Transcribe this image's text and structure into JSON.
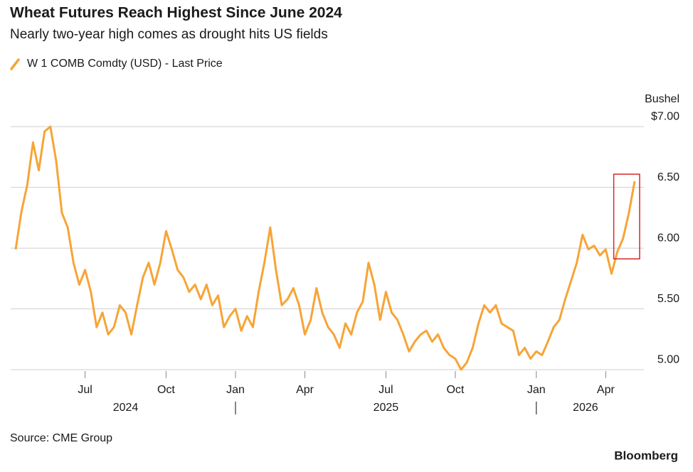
{
  "chart_data": {
    "type": "line",
    "title": "Wheat Futures Reach Highest Since June 2024",
    "subtitle": "Nearly two-year high comes as drought hits US fields",
    "y_label": "Bushel",
    "source": "Source: CME Group",
    "brand": "Bloomberg",
    "categories": [
      null,
      null,
      null,
      null,
      null,
      null,
      null,
      null,
      null,
      null,
      null,
      null,
      "Jul",
      null,
      null,
      null,
      null,
      null,
      null,
      null,
      null,
      null,
      null,
      null,
      null,
      null,
      "Oct",
      null,
      null,
      null,
      null,
      null,
      null,
      null,
      null,
      null,
      null,
      null,
      "Jan",
      null,
      null,
      null,
      null,
      null,
      null,
      null,
      null,
      null,
      null,
      null,
      "Apr",
      null,
      null,
      null,
      null,
      null,
      null,
      null,
      null,
      null,
      null,
      null,
      null,
      null,
      "Jul",
      null,
      null,
      null,
      null,
      null,
      null,
      null,
      null,
      null,
      null,
      null,
      "Oct",
      null,
      null,
      null,
      null,
      null,
      null,
      null,
      null,
      null,
      null,
      null,
      null,
      null,
      "Jan",
      null,
      null,
      null,
      null,
      null,
      null,
      null,
      null,
      null,
      null,
      null,
      "Apr",
      null,
      null,
      null,
      null,
      null
    ],
    "years": [
      "2024",
      "2025",
      "2026"
    ],
    "series": [
      {
        "name": "W 1 COMB Comdty (USD) - Last Price",
        "color": "#f7a436",
        "values": [
          5.99,
          6.3,
          6.52,
          6.87,
          6.64,
          6.96,
          7.0,
          6.72,
          6.29,
          6.17,
          5.88,
          5.7,
          5.82,
          5.64,
          5.35,
          5.47,
          5.29,
          5.35,
          5.53,
          5.47,
          5.29,
          5.53,
          5.76,
          5.88,
          5.7,
          5.88,
          6.14,
          5.99,
          5.82,
          5.76,
          5.64,
          5.7,
          5.58,
          5.7,
          5.53,
          5.61,
          5.35,
          5.44,
          5.5,
          5.32,
          5.44,
          5.35,
          5.64,
          5.88,
          6.17,
          5.82,
          5.53,
          5.58,
          5.67,
          5.53,
          5.29,
          5.41,
          5.67,
          5.47,
          5.35,
          5.29,
          5.18,
          5.38,
          5.29,
          5.47,
          5.56,
          5.88,
          5.7,
          5.41,
          5.64,
          5.47,
          5.41,
          5.29,
          5.15,
          5.23,
          5.29,
          5.32,
          5.23,
          5.29,
          5.18,
          5.12,
          5.09,
          5.0,
          5.06,
          5.18,
          5.38,
          5.53,
          5.47,
          5.53,
          5.38,
          5.35,
          5.32,
          5.12,
          5.18,
          5.09,
          5.15,
          5.12,
          5.23,
          5.35,
          5.41,
          5.58,
          5.73,
          5.88,
          6.11,
          5.99,
          6.02,
          5.94,
          5.99,
          5.79,
          5.97,
          6.08,
          6.29,
          6.55
        ]
      }
    ],
    "ylim": [
      4.93,
      7.1
    ],
    "yticks": [
      {
        "value": 5,
        "label": "5.00"
      },
      {
        "value": 5.5,
        "label": "5.50"
      },
      {
        "value": 6,
        "label": "6.00"
      },
      {
        "value": 6.5,
        "label": "6.50"
      },
      {
        "value": 7,
        "label": "$7.00"
      }
    ],
    "grid": true,
    "highlight_color": "#d62728"
  }
}
